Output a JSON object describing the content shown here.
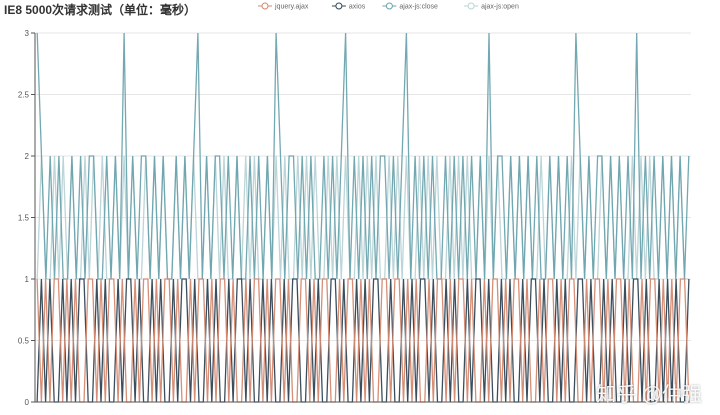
{
  "chart_data": {
    "type": "line",
    "title": "IE8 5000次请求测试（单位：毫秒）",
    "xlabel": "",
    "ylabel": "",
    "ylim": [
      0,
      3
    ],
    "yticks": [
      "0",
      "0.5",
      "1",
      "1.5",
      "2",
      "2.5",
      "3"
    ],
    "x_count_note": "5000 requests (sampled)",
    "grid": true,
    "legend_position": "top-center",
    "series": [
      {
        "name": "jquery.ajax",
        "color": "#d4886f",
        "values_encoded": "1010110101001101011010010110101101001011010110100101101011010011010110010110101001101101010010110101101001011010110100101101011001011010110100101101010110"
      },
      {
        "name": "axios",
        "color": "#2f4554",
        "values_encoded": "0101001010110010100101101001010010110100101001011010010100101100101001101001010110010010101101001010010110100101001011010010100110100101001011010010101001"
      },
      {
        "name": "ajax-js:close",
        "color": "#6aa3ad",
        "values_encoded": "3212121121212211212131212212121121212312122121211212121321221212112121231212121221212312121211212121212131221212121211212121321212212121213121212121212"
      },
      {
        "name": "ajax-js:open",
        "color": "#b8d3d6",
        "values_encoded": "1211212121121212112121211212121121212112121211212121121212112121211212121121212112121211212121121212112121211212121121212112121211212121121212112121211"
      }
    ]
  },
  "watermark": "知乎 @仲强"
}
